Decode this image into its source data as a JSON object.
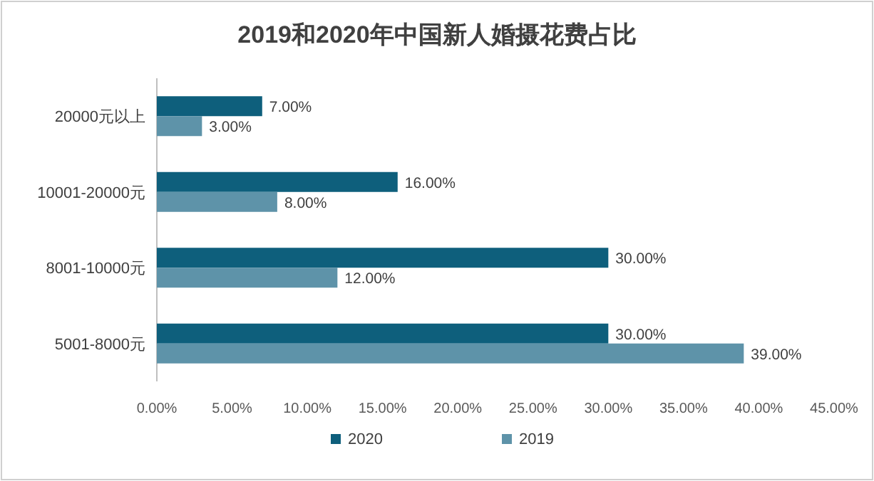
{
  "chart_data": {
    "type": "bar",
    "orientation": "horizontal",
    "title": "2019和2020年中国新人婚摄花费占比",
    "categories": [
      "20000元以上",
      "10001-20000元",
      "8001-10000元",
      "5001-8000元"
    ],
    "series": [
      {
        "name": "2020",
        "color": "#0e5f7c",
        "values": [
          7,
          16,
          30,
          30
        ],
        "value_labels": [
          "7.00%",
          "16.00%",
          "30.00%",
          "30.00%"
        ]
      },
      {
        "name": "2019",
        "color": "#5e93a9",
        "values": [
          3,
          8,
          12,
          39
        ],
        "value_labels": [
          "3.00%",
          "8.00%",
          "12.00%",
          "39.00%"
        ]
      }
    ],
    "xlim": [
      0,
      45
    ],
    "xticks": [
      {
        "value": 0,
        "label": "0.00%"
      },
      {
        "value": 5,
        "label": "5.00%"
      },
      {
        "value": 10,
        "label": "10.00%"
      },
      {
        "value": 15,
        "label": "15.00%"
      },
      {
        "value": 20,
        "label": "20.00%"
      },
      {
        "value": 25,
        "label": "25.00%"
      },
      {
        "value": 30,
        "label": "30.00%"
      },
      {
        "value": 35,
        "label": "35.00%"
      },
      {
        "value": 40,
        "label": "40.00%"
      },
      {
        "value": 45,
        "label": "45.00%"
      }
    ],
    "legend": "bottom",
    "grid": false
  }
}
